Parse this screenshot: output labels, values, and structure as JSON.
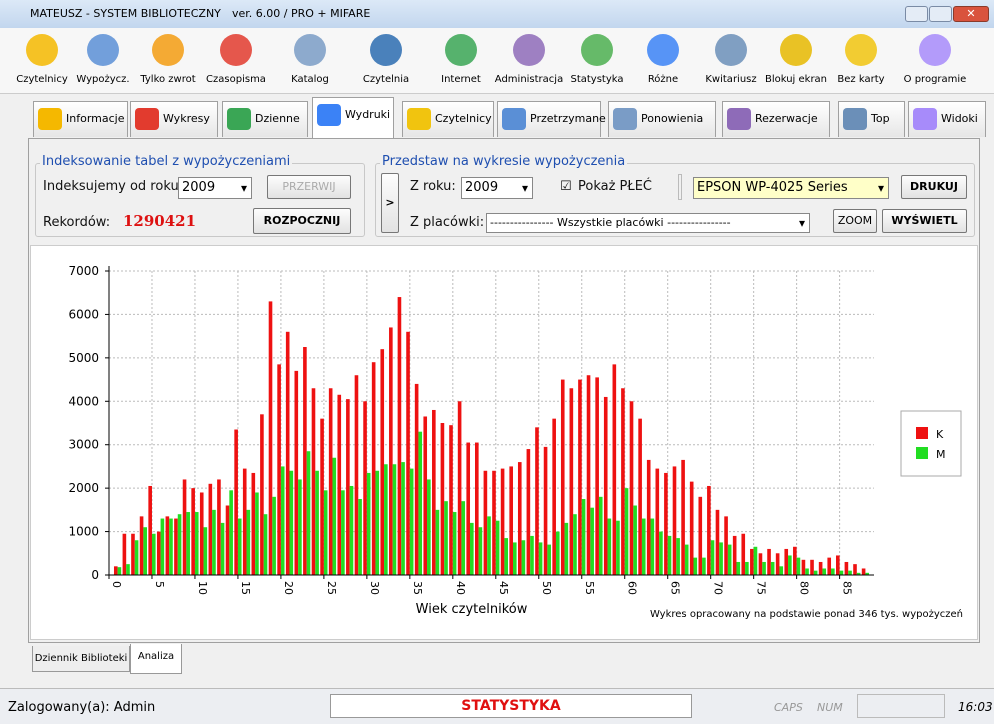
{
  "window": {
    "title": "MATEUSZ - SYSTEM BIBLIOTECZNY",
    "version": "ver. 6.00 / PRO + MIFARE"
  },
  "toolbar": [
    "Czytelnicy",
    "Wypożycz.",
    "Tylko zwrot",
    "Czasopisma",
    "Katalog",
    "Czytelnia",
    "Internet",
    "Administracja",
    "Statystyka",
    "Różne",
    "Kwitariusz",
    "Blokuj ekran",
    "Bez karty",
    "O programie"
  ],
  "tabs": [
    "Informacje",
    "Wykresy",
    "Dzienne",
    "Wydruki",
    "Czytelnicy",
    "Przetrzymane",
    "Ponowienia",
    "Rezerwacje",
    "Top",
    "Widoki"
  ],
  "index_panel": {
    "title": "Indeksowanie tabel z wypożyczeniami",
    "year_label": "Indeksujemy od roku:",
    "year": "2009",
    "stop_button": "PRZERWIJ",
    "records_label": "Rekordów:",
    "records": "1290421",
    "start_button": "ROZPOCZNIJ"
  },
  "chart_panel": {
    "title": "Przedstaw na wykresie wypożyczenia",
    "arrow_button": ">",
    "year_label": "Z roku:",
    "year": "2009",
    "gender_checkbox": "Pokaż PŁEĆ",
    "printer": "EPSON WP-4025 Series",
    "print_button": "DRUKUJ",
    "branch_label": "Z placówki:",
    "branch": "---------------- Wszystkie placówki ----------------",
    "zoom_button": "ZOOM",
    "show_button": "WYŚWIETL"
  },
  "chart_data": {
    "type": "bar",
    "x_label": "Wiek czytelników",
    "note": "Wykres opracowany na podstawie ponad 346 tys. wypożyczeń",
    "x": [
      1,
      2,
      3,
      4,
      5,
      6,
      7,
      8,
      9,
      10,
      11,
      12,
      13,
      14,
      15,
      16,
      17,
      18,
      19,
      20,
      21,
      22,
      23,
      24,
      25,
      26,
      27,
      28,
      29,
      30,
      31,
      32,
      33,
      34,
      35,
      36,
      37,
      38,
      39,
      40,
      41,
      42,
      43,
      44,
      45,
      46,
      47,
      48,
      49,
      50,
      51,
      52,
      53,
      54,
      55,
      56,
      57,
      58,
      59,
      60,
      61,
      62,
      63,
      64,
      65,
      66,
      67,
      68,
      69,
      70,
      71,
      72,
      73,
      74,
      75,
      76,
      77,
      78,
      79,
      80,
      81,
      82,
      83,
      84,
      85,
      86,
      87,
      88
    ],
    "series": [
      {
        "name": "K",
        "color": "#ee1111",
        "values": [
          200,
          950,
          950,
          1350,
          2050,
          1000,
          1350,
          1300,
          2200,
          2000,
          1900,
          2100,
          2200,
          1600,
          3350,
          2450,
          2350,
          3700,
          6300,
          4850,
          5600,
          4700,
          5250,
          4300,
          3600,
          4300,
          4150,
          4050,
          4600,
          4000,
          4900,
          5200,
          5700,
          6400,
          5600,
          4400,
          3650,
          3800,
          3500,
          3450,
          4000,
          3050,
          3050,
          2400,
          2400,
          2450,
          2500,
          2600,
          2900,
          3400,
          2950,
          3600,
          4500,
          4300,
          4500,
          4600,
          4550,
          4100,
          4850,
          4300,
          4000,
          3600,
          2650,
          2450,
          2350,
          2500,
          2650,
          2150,
          1800,
          2050,
          1500,
          1350,
          900,
          950,
          600,
          500,
          600,
          500,
          600,
          650,
          350,
          350,
          300,
          400,
          450,
          300,
          250,
          150
        ]
      },
      {
        "name": "M",
        "color": "#22dd22",
        "values": [
          180,
          250,
          800,
          1100,
          950,
          1300,
          1300,
          1400,
          1450,
          1450,
          1100,
          1500,
          1200,
          1950,
          1300,
          1500,
          1900,
          1400,
          1800,
          2500,
          2400,
          2200,
          2850,
          2400,
          1950,
          2700,
          1950,
          2050,
          1750,
          2350,
          2400,
          2550,
          2550,
          2600,
          2450,
          3300,
          2200,
          1500,
          1700,
          1450,
          1700,
          1200,
          1100,
          1350,
          1250,
          850,
          750,
          800,
          900,
          750,
          700,
          1000,
          1200,
          1400,
          1750,
          1550,
          1800,
          1300,
          1250,
          2000,
          1600,
          1300,
          1300,
          1000,
          900,
          850,
          700,
          400,
          400,
          800,
          750,
          700,
          300,
          300,
          650,
          300,
          300,
          200,
          450,
          400,
          150,
          100,
          150,
          150,
          100,
          100,
          50,
          50
        ]
      }
    ],
    "xlim": [
      0,
      89
    ],
    "ylim": [
      0,
      7000
    ],
    "xticks": [
      0,
      5,
      10,
      15,
      20,
      25,
      30,
      35,
      40,
      45,
      50,
      55,
      60,
      65,
      70,
      75,
      80,
      85
    ],
    "yticks": [
      0,
      1000,
      2000,
      3000,
      4000,
      5000,
      6000,
      7000
    ],
    "grid": true,
    "legend": "right"
  },
  "bottom_tabs": [
    "Dziennik Biblioteki",
    "Analiza"
  ],
  "status_bar": {
    "user": "Zalogowany(a): Admin",
    "module": "STATYSTYKA",
    "caps": "CAPS",
    "num": "NUM",
    "time": "16:03"
  }
}
